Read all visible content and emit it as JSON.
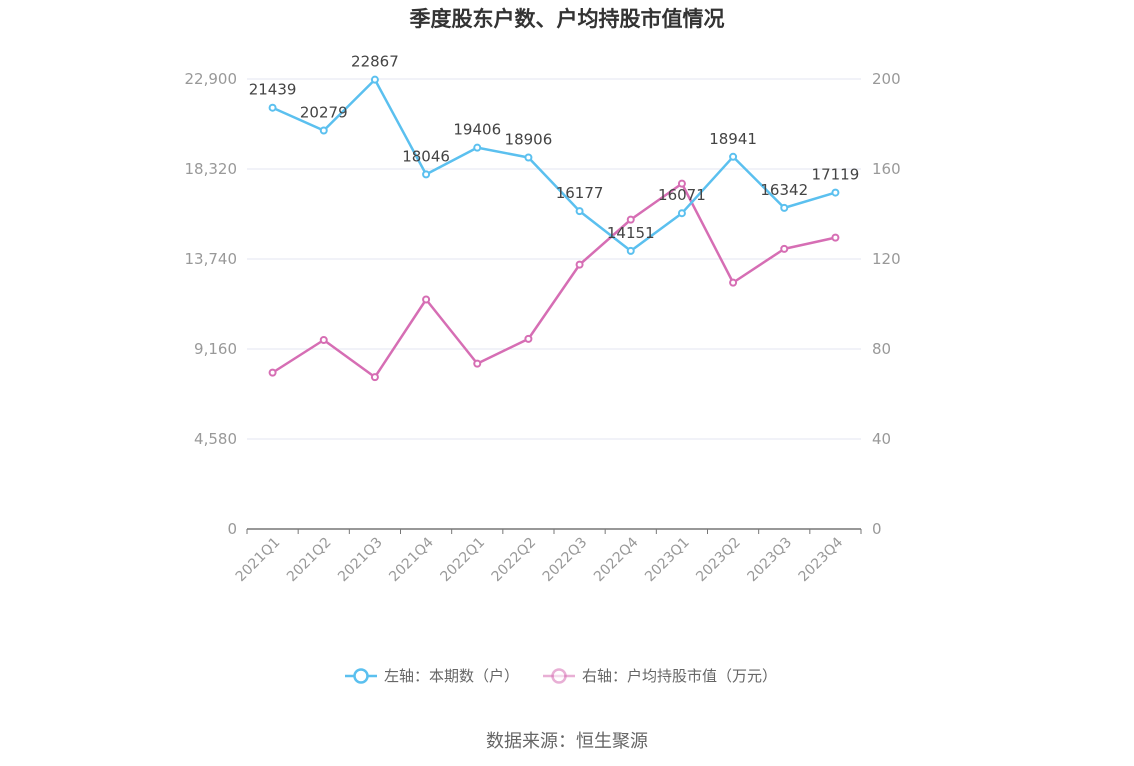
{
  "chart_data": {
    "type": "line",
    "title": "季度股东户数、户均持股市值情况",
    "categories": [
      "2021Q1",
      "2021Q2",
      "2021Q3",
      "2021Q4",
      "2022Q1",
      "2022Q2",
      "2022Q3",
      "2022Q4",
      "2023Q1",
      "2023Q2",
      "2023Q3",
      "2023Q4"
    ],
    "left_axis": {
      "ticks": [
        "0",
        "4,580",
        "9,160",
        "13,740",
        "18,320",
        "22,900"
      ],
      "ylim": [
        0,
        22900
      ]
    },
    "right_axis": {
      "ticks": [
        "0",
        "40",
        "80",
        "120",
        "160",
        "200"
      ],
      "ylim": [
        0,
        200
      ]
    },
    "series": [
      {
        "name": "左轴：本期数（户）",
        "axis": "left",
        "color": "#5bc0ef",
        "values": [
          21439,
          20279,
          22867,
          18046,
          19406,
          18906,
          16177,
          14151,
          16071,
          18941,
          16342,
          17119
        ],
        "labels": [
          "21439",
          "20279",
          "22867",
          "18046",
          "19406",
          "18906",
          "16177",
          "14151",
          "16071",
          "18941",
          "16342",
          "17119"
        ]
      },
      {
        "name": "右轴：户均持股市值（万元）",
        "axis": "right",
        "color": "#d66eb4",
        "values": [
          69.5,
          84,
          67.5,
          102,
          73.5,
          84.5,
          117.5,
          137.5,
          153.5,
          109.5,
          124.5,
          129.5
        ]
      }
    ],
    "grid": true,
    "legend_position": "bottom"
  },
  "footer": {
    "source": "数据来源：恒生聚源"
  }
}
